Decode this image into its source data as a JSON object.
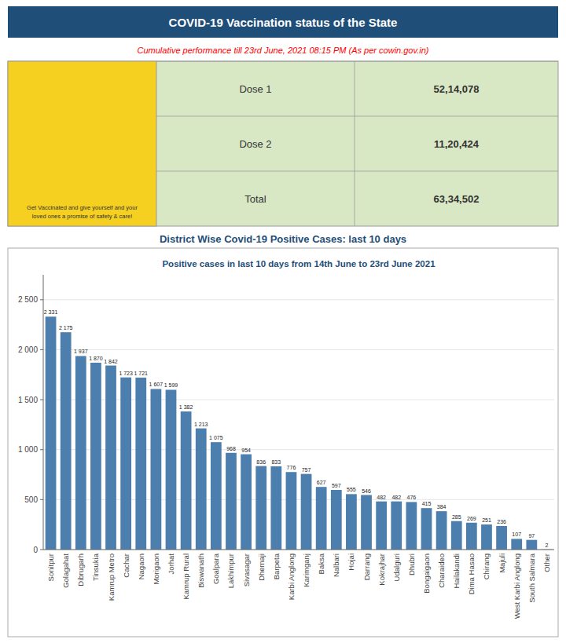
{
  "page": {
    "title": "COVID-19 Vaccination status of the State",
    "subtitle": "Cumulative performance till 23rd June, 2021 08:15  PM (As per cowin.gov.in)",
    "table": [
      {
        "label": "Dose 1",
        "value": "52,14,078"
      },
      {
        "label": "Dose 2",
        "value": "11,20,424"
      },
      {
        "label": "Total",
        "value": "63,34,502"
      }
    ],
    "caption": "Get Vaccinated and give yourself and your\nloved ones a promise of safety & care!",
    "section_title": "District Wise Covid-19 Positive Cases: last 10 days"
  },
  "chart_data": {
    "type": "bar",
    "title": "Positive cases in last 10 days from 14th June to 23rd June 2021",
    "categories": [
      "Sonitpur",
      "Golagahat",
      "Dibrugarh",
      "Tinsukia",
      "Kamrup Metro",
      "Cachar",
      "Nagaon",
      "Morigaon",
      "Jorhat",
      "Kamrup Rural",
      "Biswanath",
      "Goalpara",
      "Lakhimpur",
      "Sivasagar",
      "Dhemaji",
      "Barpeta",
      "Karbi Anglong",
      "Karimganj",
      "Baksa",
      "Nalbari",
      "Hojai",
      "Darrang",
      "Kokrajhar",
      "Udalguri",
      "Dhubri",
      "Bongaigaon",
      "Charaideo",
      "Hailakandi",
      "Dima Hasao",
      "Chirang",
      "Majuli",
      "West Karbi Anglong",
      "South Salmara",
      "Other"
    ],
    "values": [
      2331,
      2175,
      1937,
      1870,
      1842,
      1723,
      1721,
      1607,
      1599,
      1382,
      1213,
      1075,
      968,
      954,
      836,
      833,
      776,
      757,
      627,
      597,
      555,
      546,
      482,
      482,
      476,
      415,
      384,
      285,
      269,
      251,
      236,
      107,
      97,
      2
    ],
    "value_labels": [
      "2 331",
      "2 175",
      "1 937",
      "1 870",
      "1 842",
      "1 723",
      "1 721",
      "1 607",
      "1 599",
      "1 382",
      "1 213",
      "1 075",
      "968",
      "954",
      "836",
      "833",
      "776",
      "757",
      "627",
      "597",
      "555",
      "546",
      "482",
      "482",
      "476",
      "415",
      "384",
      "285",
      "269",
      "251",
      "236",
      "107",
      "97",
      "2"
    ],
    "color": "#4d7fae",
    "ylim": [
      0,
      2750
    ],
    "yticks": [
      0,
      500,
      {
        "value": 1000,
        "label": "1 000"
      },
      {
        "value": 1500,
        "label": "1 500"
      },
      {
        "value": 2000,
        "label": "2 000"
      },
      {
        "value": 2500,
        "label": "2 500"
      }
    ],
    "grid": true,
    "data_labels": true
  }
}
